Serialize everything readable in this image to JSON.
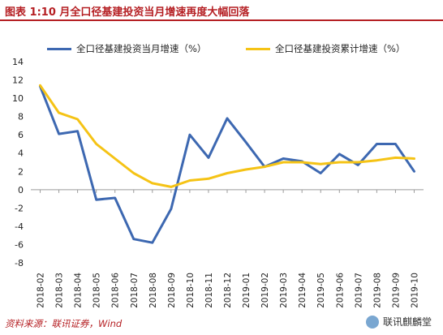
{
  "figure": {
    "title": "图表 1:10 月全口径基建投资当月增速再度大幅回落",
    "source": "资料来源：联讯证券，Wind",
    "watermark": "联讯麒麟堂"
  },
  "colors": {
    "title": "#b51f23",
    "series_monthly": "#3d68b1",
    "series_cumulative": "#f5c315",
    "axis": "#9a9a9a"
  },
  "chart_data": {
    "type": "line",
    "categories": [
      "2018-02",
      "2018-03",
      "2018-04",
      "2018-05",
      "2018-06",
      "2018-07",
      "2018-08",
      "2018-09",
      "2018-10",
      "2018-11",
      "2018-12",
      "2019-01",
      "2019-02",
      "2019-03",
      "2019-04",
      "2019-05",
      "2019-06",
      "2019-07",
      "2019-08",
      "2019-09",
      "2019-10"
    ],
    "series": [
      {
        "name": "全口径基建投资当月增速（%）",
        "color": "#3d68b1",
        "values": [
          11.3,
          6.1,
          6.4,
          -1.1,
          -0.9,
          -5.4,
          -5.8,
          -2.1,
          6.0,
          3.5,
          7.8,
          5.2,
          2.5,
          3.4,
          3.1,
          1.8,
          3.9,
          2.7,
          5.0,
          5.0,
          2.0
        ]
      },
      {
        "name": "全口径基建投资累计增速（%）",
        "color": "#f5c315",
        "values": [
          11.4,
          8.4,
          7.7,
          5.0,
          3.4,
          1.8,
          0.7,
          0.3,
          1.0,
          1.2,
          1.8,
          2.2,
          2.5,
          3.0,
          3.0,
          2.8,
          3.0,
          3.0,
          3.2,
          3.5,
          3.4
        ]
      }
    ],
    "ylim": [
      -8,
      14
    ],
    "yticks": [
      "-8",
      "-6",
      "-4",
      "-2",
      "0",
      "2",
      "4",
      "6",
      "8",
      "10",
      "12",
      "14"
    ],
    "grid": false,
    "legend_position": "top"
  }
}
